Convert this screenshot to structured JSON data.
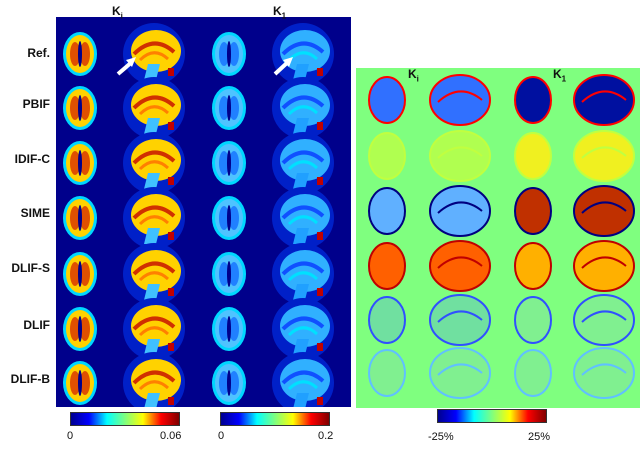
{
  "column_headers": {
    "left": [
      {
        "main": "K",
        "sub": "i"
      },
      {
        "main": "K",
        "sub": "1"
      }
    ],
    "right": [
      {
        "main": "K",
        "sub": "i"
      },
      {
        "main": "K",
        "sub": "1"
      }
    ]
  },
  "rows": [
    "Ref.",
    "PBIF",
    "IDIF-C",
    "SIME",
    "DLIF-S",
    "DLIF",
    "DLIF-B"
  ],
  "colorbars": [
    {
      "min": "0",
      "max": "0.06"
    },
    {
      "min": "0",
      "max": "0.2"
    },
    {
      "min": "-25%",
      "max": "25%"
    }
  ],
  "colors": {
    "panel_background": "#00008b",
    "difference_background": "#7fff7f"
  }
}
